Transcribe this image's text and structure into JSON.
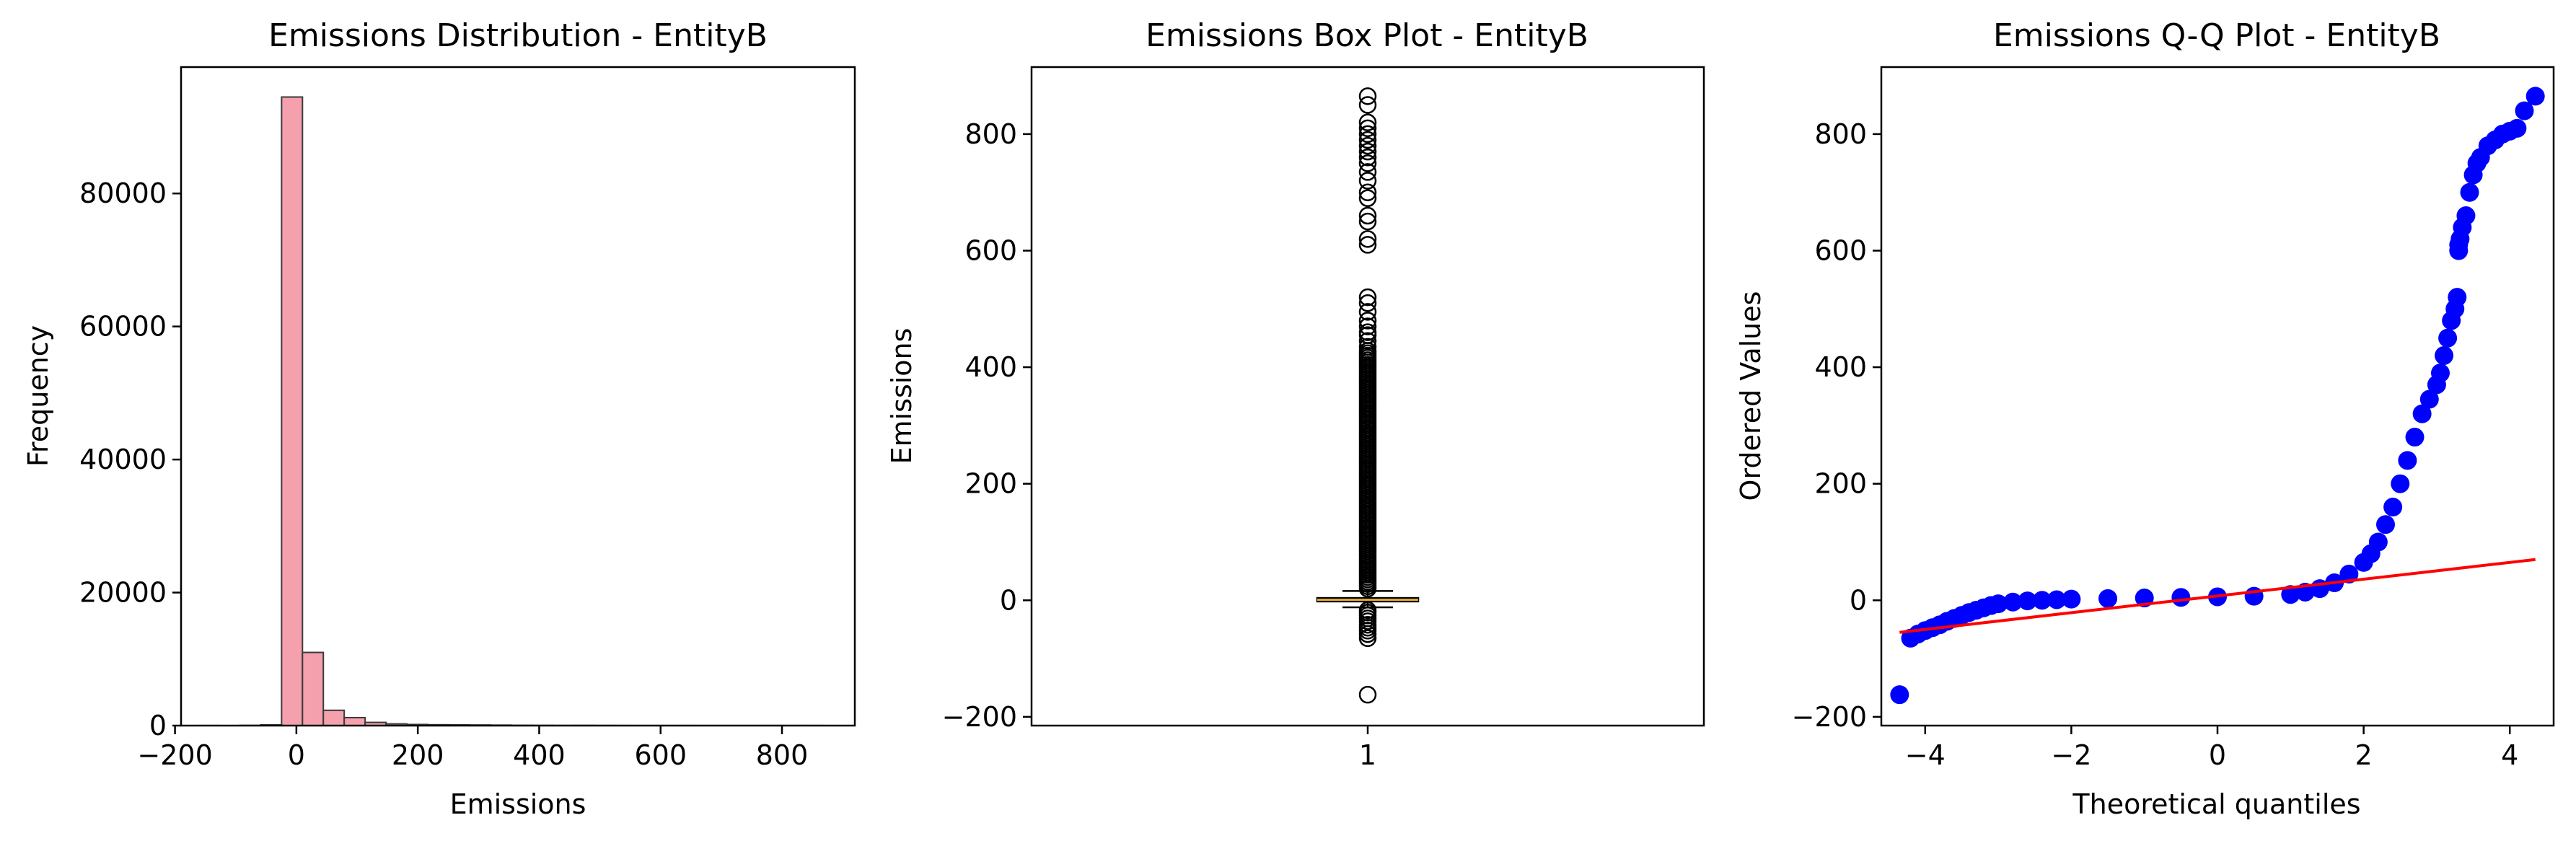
{
  "colors": {
    "hist_fill": "#f4a0ad",
    "hist_edge": "#3a3a3a",
    "box_median": "#e0a63a",
    "box_fill": "#ffffff",
    "qq_points": "#0000ff",
    "qq_line": "#ff0000",
    "axis": "#000000"
  },
  "chart_data": [
    {
      "type": "bar",
      "subtype": "histogram",
      "title": "Emissions Distribution - EntityB",
      "xlabel": "Emissions",
      "ylabel": "Frequency",
      "xlim": [
        -190,
        920
      ],
      "ylim": [
        0,
        99000
      ],
      "xticks": [
        -200,
        0,
        200,
        400,
        600,
        800
      ],
      "yticks": [
        0,
        20000,
        40000,
        60000,
        80000
      ],
      "bin_width": 34.4,
      "bin_starts": [
        -162.0,
        -127.6,
        -93.2,
        -58.8,
        -24.4,
        10.0,
        44.4,
        78.8,
        113.2,
        147.6,
        182.0,
        216.4,
        250.8,
        285.2,
        319.6,
        354.0,
        388.4,
        422.8,
        457.2,
        491.6,
        526.0,
        560.4,
        594.8,
        629.2,
        663.6,
        698.0,
        732.4,
        766.8,
        801.2,
        835.6
      ],
      "values": [
        5,
        0,
        30,
        120,
        94500,
        11000,
        2300,
        1200,
        480,
        260,
        170,
        130,
        110,
        90,
        70,
        40,
        30,
        20,
        25,
        15,
        10,
        5,
        5,
        10,
        5,
        5,
        5,
        10,
        10,
        10
      ]
    },
    {
      "type": "box",
      "title": "Emissions Box Plot - EntityB",
      "xlabel": "",
      "ylabel": "Emissions",
      "ylim": [
        -215,
        915
      ],
      "yticks": [
        -200,
        0,
        200,
        400,
        600,
        800
      ],
      "xticks": [
        "1"
      ],
      "box": {
        "q1": -2,
        "median": 1,
        "q3": 4,
        "whisker_low": -12,
        "whisker_high": 16
      },
      "outliers": [
        -162,
        -65,
        -58,
        -52,
        -47,
        -42,
        -36,
        -31,
        -26,
        -21,
        -17,
        520,
        510,
        495,
        480,
        470,
        460,
        455,
        445,
        435,
        620,
        610,
        650,
        660,
        690,
        700,
        720,
        735,
        750,
        760,
        770,
        780,
        790,
        800,
        810,
        820,
        850,
        865
      ],
      "outlier_dense_range": [
        20,
        430
      ]
    },
    {
      "type": "scatter",
      "subtype": "qq-plot",
      "title": "Emissions Q-Q Plot - EntityB",
      "xlabel": "Theoretical quantiles",
      "ylabel": "Ordered Values",
      "xlim": [
        -4.6,
        4.6
      ],
      "ylim": [
        -215,
        915
      ],
      "xticks": [
        -4,
        -2,
        0,
        2,
        4
      ],
      "yticks": [
        -200,
        0,
        200,
        400,
        600,
        800
      ],
      "points": {
        "x": [
          -4.35,
          -4.2,
          -4.1,
          -4.0,
          -3.9,
          -3.8,
          -3.7,
          -3.6,
          -3.5,
          -3.4,
          -3.3,
          -3.2,
          -3.1,
          -3.0,
          -2.8,
          -2.6,
          -2.4,
          -2.2,
          -2.0,
          -1.5,
          -1.0,
          -0.5,
          0.0,
          0.5,
          1.0,
          1.2,
          1.4,
          1.6,
          1.8,
          2.0,
          2.1,
          2.2,
          2.3,
          2.4,
          2.5,
          2.6,
          2.7,
          2.8,
          2.9,
          3.0,
          3.05,
          3.1,
          3.15,
          3.2,
          3.25,
          3.28,
          3.3,
          3.3,
          3.32,
          3.35,
          3.4,
          3.45,
          3.5,
          3.55,
          3.6,
          3.7,
          3.8,
          3.9,
          4.0,
          4.1,
          4.2,
          4.35
        ],
        "y": [
          -162,
          -65,
          -58,
          -52,
          -47,
          -42,
          -36,
          -31,
          -26,
          -21,
          -17,
          -13,
          -9,
          -6,
          -3,
          -1,
          0,
          1,
          2,
          3,
          4,
          5,
          6,
          7,
          10,
          14,
          20,
          30,
          45,
          65,
          80,
          100,
          130,
          160,
          200,
          240,
          280,
          320,
          345,
          370,
          390,
          420,
          450,
          480,
          500,
          520,
          600,
          610,
          620,
          640,
          660,
          700,
          730,
          750,
          760,
          780,
          790,
          800,
          805,
          810,
          840,
          865
        ]
      },
      "fit_line": {
        "x": [
          -4.35,
          4.35
        ],
        "y": [
          -55,
          70
        ]
      }
    }
  ]
}
